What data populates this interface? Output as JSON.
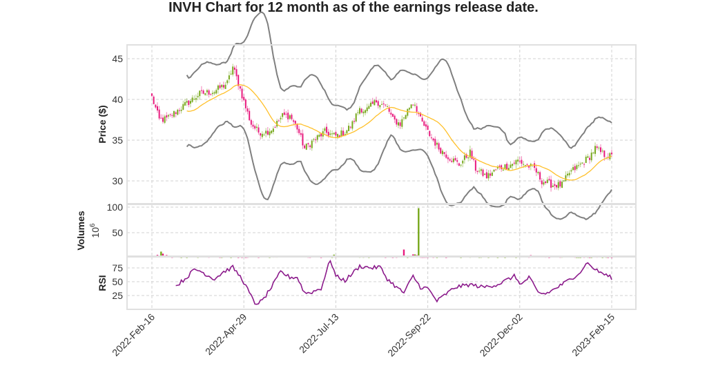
{
  "chart_data": {
    "type": "candlestick",
    "title": "INVH Chart for 12 month as of the earnings release date.",
    "panels": [
      {
        "name": "price",
        "ylabel": "Price ($)",
        "yticks": [
          30,
          35,
          40,
          45
        ],
        "ylim": [
          28,
          46.5
        ]
      },
      {
        "name": "volume",
        "ylabel": "Volumes",
        "unit_base": "10",
        "unit_exp": "6",
        "yticks": [
          50,
          100
        ],
        "ylim": [
          0,
          103
        ]
      },
      {
        "name": "rsi",
        "ylabel": "RSI",
        "yticks": [
          25,
          50,
          75
        ],
        "ylim": [
          3,
          97
        ]
      }
    ],
    "xticks": [
      "2022-Feb-16",
      "2022-Apr-29",
      "2022-Jul-13",
      "2022-Sep-22",
      "2022-Dec-02",
      "2023-Feb-15"
    ],
    "trading_days_between_ticks": 50,
    "close_keypoints": [
      [
        0,
        40.3
      ],
      [
        4,
        37.5
      ],
      [
        8,
        37.6
      ],
      [
        13,
        38.5
      ],
      [
        19,
        39.5
      ],
      [
        26,
        40.7
      ],
      [
        34,
        41
      ],
      [
        41,
        42
      ],
      [
        44,
        44
      ],
      [
        47,
        42
      ],
      [
        51,
        39
      ],
      [
        54,
        37
      ],
      [
        58,
        36
      ],
      [
        62,
        36
      ],
      [
        66,
        36.5
      ],
      [
        71,
        38
      ],
      [
        75,
        38
      ],
      [
        79,
        36.5
      ],
      [
        83,
        34
      ],
      [
        88,
        35
      ],
      [
        94,
        36
      ],
      [
        100,
        35.5
      ],
      [
        105,
        36
      ],
      [
        109,
        37
      ],
      [
        113,
        39
      ],
      [
        116,
        38.5
      ],
      [
        122,
        39.8
      ],
      [
        128,
        39
      ],
      [
        131,
        37.5
      ],
      [
        135,
        37
      ],
      [
        141,
        39.5
      ],
      [
        143,
        39.5
      ],
      [
        146,
        37.5
      ],
      [
        150,
        36
      ],
      [
        156,
        34
      ],
      [
        161,
        33
      ],
      [
        167,
        32
      ],
      [
        173,
        33.5
      ],
      [
        176,
        31.5
      ],
      [
        182,
        30.5
      ],
      [
        188,
        31.5
      ],
      [
        195,
        32
      ],
      [
        199,
        32.5
      ],
      [
        203,
        32
      ],
      [
        208,
        31.5
      ],
      [
        212,
        30
      ],
      [
        218,
        29.5
      ],
      [
        223,
        29.5
      ],
      [
        227,
        31
      ],
      [
        233,
        32
      ],
      [
        238,
        33
      ],
      [
        241,
        34
      ],
      [
        246,
        33.2
      ],
      [
        250,
        33
      ]
    ],
    "rsi_keypoints": [
      [
        13,
        42
      ],
      [
        19,
        58
      ],
      [
        23,
        72
      ],
      [
        26,
        70
      ],
      [
        30,
        62
      ],
      [
        34,
        55
      ],
      [
        39,
        68
      ],
      [
        44,
        76
      ],
      [
        49,
        55
      ],
      [
        53,
        30
      ],
      [
        56,
        10
      ],
      [
        60,
        15
      ],
      [
        66,
        45
      ],
      [
        70,
        68
      ],
      [
        75,
        58
      ],
      [
        79,
        58
      ],
      [
        83,
        30
      ],
      [
        86,
        30
      ],
      [
        92,
        38
      ],
      [
        97,
        90
      ],
      [
        100,
        60
      ],
      [
        105,
        52
      ],
      [
        113,
        78
      ],
      [
        120,
        75
      ],
      [
        124,
        77
      ],
      [
        128,
        55
      ],
      [
        133,
        40
      ],
      [
        137,
        30
      ],
      [
        142,
        60
      ],
      [
        146,
        40
      ],
      [
        150,
        38
      ],
      [
        155,
        15
      ],
      [
        160,
        28
      ],
      [
        165,
        40
      ],
      [
        173,
        45
      ],
      [
        180,
        40
      ],
      [
        188,
        45
      ],
      [
        197,
        60
      ],
      [
        201,
        45
      ],
      [
        205,
        58
      ],
      [
        210,
        30
      ],
      [
        214,
        28
      ],
      [
        218,
        35
      ],
      [
        223,
        45
      ],
      [
        229,
        58
      ],
      [
        234,
        70
      ],
      [
        236,
        85
      ],
      [
        242,
        70
      ],
      [
        250,
        57
      ]
    ],
    "volume_base_millions": 3,
    "volume_spikes": [
      [
        5,
        13,
        "up"
      ],
      [
        6,
        9,
        "down"
      ],
      [
        99,
        7,
        "up"
      ],
      [
        137,
        17,
        "down"
      ],
      [
        145,
        98,
        "up"
      ],
      [
        206,
        6,
        "down"
      ]
    ],
    "indicators": [
      "20-day SMA",
      "Bollinger Bands (20, 2)",
      "RSI"
    ]
  },
  "colors": {
    "up": "#77a81c",
    "down": "#e8197d",
    "sma": "#ffc02a",
    "bands": "#7f7f7f",
    "rsi": "#8b1a8b",
    "grid": "#d0d0d0",
    "frame": "#e0e0e0"
  }
}
